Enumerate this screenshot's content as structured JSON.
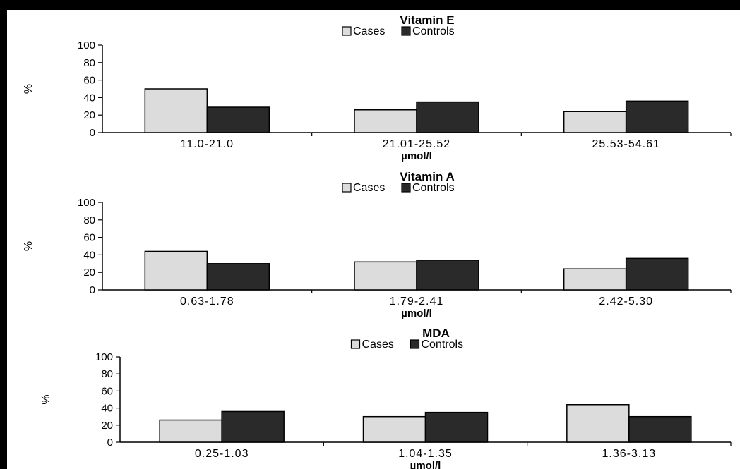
{
  "chart_data": [
    {
      "type": "bar",
      "title": "Vitamin E",
      "xlabel": "µmol/l",
      "ylabel": "%",
      "categories": [
        "11.0-21.0",
        "21.01-25.52",
        "25.53-54.61"
      ],
      "series": [
        {
          "name": "Cases",
          "values": [
            50,
            26,
            24
          ]
        },
        {
          "name": "Controls",
          "values": [
            29,
            35,
            36
          ]
        }
      ],
      "ylim": [
        0,
        100
      ],
      "yticks": [
        0,
        20,
        40,
        60,
        80,
        100
      ],
      "legend": "top-center",
      "grid": false
    },
    {
      "type": "bar",
      "title": "Vitamin A",
      "xlabel": "µmol/l",
      "ylabel": "%",
      "categories": [
        "0.63-1.78",
        "1.79-2.41",
        "2.42-5.30"
      ],
      "series": [
        {
          "name": "Cases",
          "values": [
            44,
            32,
            24
          ]
        },
        {
          "name": "Controls",
          "values": [
            30,
            34,
            36
          ]
        }
      ],
      "ylim": [
        0,
        100
      ],
      "yticks": [
        0,
        20,
        40,
        60,
        80,
        100
      ],
      "legend": "top-center",
      "grid": false
    },
    {
      "type": "bar",
      "title": "MDA",
      "xlabel": "µmol/l",
      "ylabel": "%",
      "categories": [
        "0.25-1.03",
        "1.04-1.35",
        "1.36-3.13"
      ],
      "series": [
        {
          "name": "Cases",
          "values": [
            26,
            30,
            44
          ]
        },
        {
          "name": "Controls",
          "values": [
            36,
            35,
            30
          ]
        }
      ],
      "ylim": [
        0,
        100
      ],
      "yticks": [
        0,
        20,
        40,
        60,
        80,
        100
      ],
      "legend": "top-center",
      "grid": false
    }
  ],
  "colors": {
    "cases": "#dcdcdc",
    "controls": "#2a2a2a",
    "axis": "#000000",
    "frame": "#000000"
  }
}
